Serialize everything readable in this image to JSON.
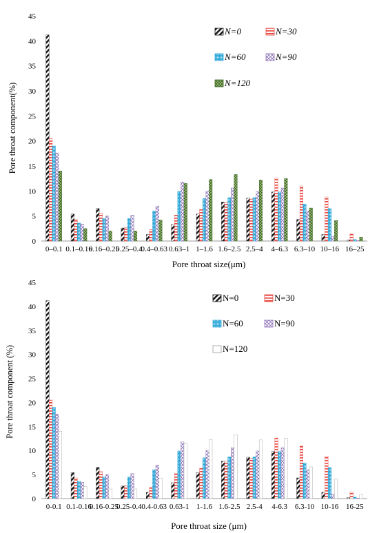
{
  "colors": {
    "n0": "#1a1a1a",
    "n30": "#e8473f",
    "n60": "#2fa8d8",
    "n90": "#8a6fb5",
    "n120_top": "#3f6a22",
    "n120_bottom": "#9a9a9a"
  },
  "chart_data": [
    {
      "type": "bar",
      "title": "",
      "xlabel": "Pore throat size(μm)",
      "ylabel": "Pore throat component(%)",
      "ylim": [
        0,
        45
      ],
      "yticks": [
        "0",
        "5",
        "10",
        "15",
        "20",
        "25",
        "30",
        "35",
        "40",
        "45"
      ],
      "categories": [
        "0–0.1",
        "0.1–0.16",
        "0.16–0.25",
        "0.25–0.4",
        "0.4–0.63",
        "0.63–1",
        "1–1.6",
        "1.6–2.5",
        "2.5–4",
        "4–6.3",
        "6.3–10",
        "10–16",
        "16–25"
      ],
      "legend_placement": "top-right",
      "series": [
        {
          "name": "N=0",
          "values": [
            41.2,
            5.4,
            6.5,
            2.6,
            1.3,
            3.3,
            5.4,
            7.8,
            8.6,
            9.8,
            4.3,
            1.3,
            0.2
          ]
        },
        {
          "name": "N=30",
          "values": [
            20.5,
            4.3,
            5.6,
            2.7,
            2.3,
            5.2,
            6.3,
            7.8,
            8.4,
            12.6,
            11.0,
            8.8,
            1.4
          ]
        },
        {
          "name": "N=60",
          "values": [
            19.0,
            3.6,
            4.5,
            4.5,
            6.0,
            9.9,
            8.5,
            8.7,
            8.7,
            9.8,
            7.4,
            6.5,
            0.3
          ]
        },
        {
          "name": "N=90",
          "values": [
            17.6,
            3.4,
            5.0,
            5.2,
            7.0,
            11.8,
            10.0,
            10.6,
            9.9,
            10.6,
            6.0,
            0.9,
            0.1
          ]
        },
        {
          "name": "N=120",
          "values": [
            14.0,
            2.5,
            2.0,
            2.0,
            4.2,
            11.5,
            12.3,
            13.3,
            12.2,
            12.5,
            6.6,
            4.1,
            0.8
          ]
        }
      ]
    },
    {
      "type": "bar",
      "title": "",
      "xlabel": "Pore throat size (μm)",
      "ylabel": "Pore throat component (%)",
      "ylim": [
        0,
        45
      ],
      "yticks": [
        "0",
        "5",
        "10",
        "15",
        "20",
        "25",
        "30",
        "35",
        "40",
        "45"
      ],
      "categories": [
        "0-0.1",
        "0.1-0.16",
        "0.16-0.25",
        "0.25-0.4",
        "0.4-0.63",
        "0.63-1",
        "1-1.6",
        "1.6-2.5",
        "2.5-4",
        "4-6.3",
        "6.3-10",
        "10-16",
        "16-25"
      ],
      "legend_placement": "top-right",
      "series": [
        {
          "name": "N=0",
          "values": [
            41.2,
            5.4,
            6.5,
            2.6,
            1.3,
            3.3,
            5.4,
            7.8,
            8.6,
            9.8,
            4.3,
            1.3,
            0.2
          ]
        },
        {
          "name": "N=30",
          "values": [
            20.5,
            4.3,
            5.6,
            2.7,
            2.3,
            5.2,
            6.3,
            7.8,
            8.4,
            12.6,
            11.0,
            8.8,
            1.4
          ]
        },
        {
          "name": "N=60",
          "values": [
            19.0,
            3.6,
            4.5,
            4.5,
            6.0,
            9.9,
            8.5,
            8.7,
            8.7,
            9.8,
            7.4,
            6.5,
            0.3
          ]
        },
        {
          "name": "N=90",
          "values": [
            17.6,
            3.4,
            5.0,
            5.2,
            7.0,
            11.8,
            10.0,
            10.6,
            9.9,
            10.6,
            6.0,
            0.9,
            0.1
          ]
        },
        {
          "name": "N=120",
          "values": [
            14.0,
            2.5,
            2.0,
            2.0,
            4.2,
            11.5,
            12.3,
            13.3,
            12.2,
            12.5,
            6.6,
            4.1,
            0.8
          ]
        }
      ]
    }
  ]
}
